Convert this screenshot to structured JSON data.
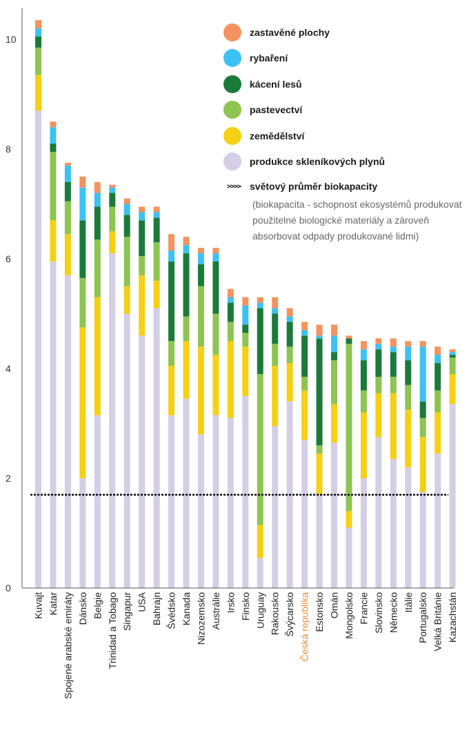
{
  "chart_data": {
    "type": "bar",
    "stacked": true,
    "ylim": [
      0,
      10.5
    ],
    "y_ticks": [
      0,
      2,
      4,
      6,
      8,
      10
    ],
    "highlight_category": "Česká republika",
    "categories": [
      "Kuvajt",
      "Katar",
      "Spojené arabské emiráty",
      "Dánsko",
      "Belgie",
      "Trinidad a Tobago",
      "Singapur",
      "USA",
      "Bahrajn",
      "Švédsko",
      "Kanada",
      "Nizozemsko",
      "Austrálie",
      "Irsko",
      "Finsko",
      "Uruguay",
      "Rakousko",
      "Švýcarsko",
      "Česká republika",
      "Estonsko",
      "Omán",
      "Mongolsko",
      "Francie",
      "Slovinsko",
      "Německo",
      "Itálie",
      "Portugalsko",
      "Velká Británie",
      "Kazachstán"
    ],
    "series": [
      {
        "name": "produkce skleníkových plynů",
        "color": "#d4cfe5",
        "values": [
          8.7,
          5.95,
          5.7,
          2.0,
          3.15,
          6.1,
          5.0,
          4.6,
          5.1,
          3.15,
          3.45,
          2.8,
          3.15,
          3.1,
          3.5,
          0.55,
          2.95,
          3.4,
          2.7,
          1.7,
          2.65,
          1.1,
          2.0,
          2.75,
          2.35,
          2.2,
          1.75,
          2.45,
          3.35
        ]
      },
      {
        "name": "zemědělství",
        "color": "#f5d013",
        "values": [
          0.65,
          0.75,
          0.75,
          2.75,
          2.15,
          0.4,
          0.5,
          1.1,
          0.5,
          0.9,
          1.05,
          1.6,
          1.1,
          1.4,
          0.9,
          0.6,
          1.1,
          0.7,
          0.9,
          0.75,
          0.7,
          0.3,
          1.2,
          0.8,
          1.2,
          1.05,
          1.0,
          0.75,
          0.55
        ]
      },
      {
        "name": "pastevectví",
        "color": "#8dc452",
        "values": [
          0.5,
          1.25,
          0.6,
          0.9,
          1.05,
          0.45,
          0.9,
          0.35,
          0.7,
          0.45,
          0.45,
          1.1,
          0.75,
          0.35,
          0.25,
          2.75,
          0.4,
          0.3,
          0.25,
          0.15,
          0.8,
          3.05,
          0.4,
          0.3,
          0.3,
          0.45,
          0.35,
          0.4,
          0.3
        ]
      },
      {
        "name": "kácení lesů",
        "color": "#1b7a3a",
        "values": [
          0.2,
          0.15,
          0.35,
          1.05,
          0.6,
          0.25,
          0.4,
          0.65,
          0.45,
          1.45,
          1.15,
          0.4,
          0.95,
          0.35,
          0.15,
          1.2,
          0.55,
          0.45,
          0.75,
          1.95,
          0.15,
          0.1,
          0.55,
          0.5,
          0.45,
          0.45,
          0.3,
          0.5,
          0.05
        ]
      },
      {
        "name": "rybaření",
        "color": "#3cc2f2",
        "values": [
          0.15,
          0.3,
          0.3,
          0.6,
          0.25,
          0.1,
          0.2,
          0.15,
          0.1,
          0.2,
          0.15,
          0.2,
          0.15,
          0.1,
          0.35,
          0.1,
          0.1,
          0.1,
          0.1,
          0.05,
          0.3,
          0.0,
          0.2,
          0.1,
          0.1,
          0.25,
          1.0,
          0.15,
          0.05
        ]
      },
      {
        "name": "zastavěné plochy",
        "color": "#f4935d",
        "values": [
          0.15,
          0.1,
          0.05,
          0.2,
          0.2,
          0.05,
          0.1,
          0.1,
          0.1,
          0.3,
          0.15,
          0.1,
          0.1,
          0.15,
          0.15,
          0.1,
          0.2,
          0.15,
          0.15,
          0.2,
          0.2,
          0.05,
          0.15,
          0.1,
          0.15,
          0.1,
          0.1,
          0.15,
          0.05
        ]
      }
    ],
    "reference_line": {
      "name": "světový průměr biokapacity",
      "value": 1.7
    },
    "note": "(biokapacita - schopnost ekosystémů produkovat použitelné biologické materiály a zároveň absorbovat odpady produkované lidmi)",
    "legend_position": "top-right",
    "grid": false
  }
}
